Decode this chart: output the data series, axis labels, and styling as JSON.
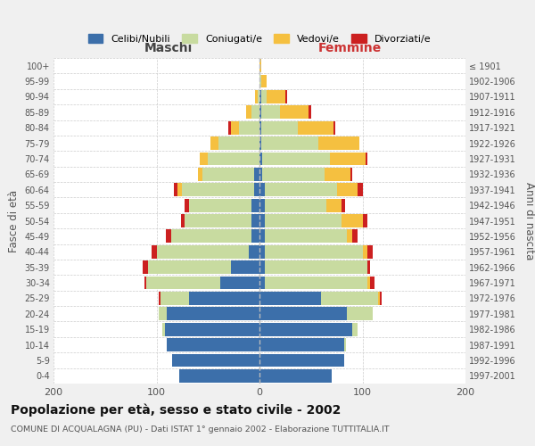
{
  "age_groups": [
    "0-4",
    "5-9",
    "10-14",
    "15-19",
    "20-24",
    "25-29",
    "30-34",
    "35-39",
    "40-44",
    "45-49",
    "50-54",
    "55-59",
    "60-64",
    "65-69",
    "70-74",
    "75-79",
    "80-84",
    "85-89",
    "90-94",
    "95-99",
    "100+"
  ],
  "birth_years": [
    "1997-2001",
    "1992-1996",
    "1987-1991",
    "1982-1986",
    "1977-1981",
    "1972-1976",
    "1967-1971",
    "1962-1966",
    "1957-1961",
    "1952-1956",
    "1947-1951",
    "1942-1946",
    "1937-1941",
    "1932-1936",
    "1927-1931",
    "1922-1926",
    "1917-1921",
    "1912-1916",
    "1907-1911",
    "1902-1906",
    "≤ 1901"
  ],
  "male": {
    "celibe": [
      78,
      85,
      90,
      92,
      90,
      68,
      38,
      28,
      10,
      8,
      8,
      8,
      5,
      5,
      0,
      0,
      0,
      0,
      0,
      0,
      0
    ],
    "coniugato": [
      0,
      0,
      0,
      2,
      8,
      28,
      72,
      80,
      90,
      78,
      65,
      60,
      70,
      50,
      50,
      40,
      20,
      8,
      2,
      0,
      0
    ],
    "vedovo": [
      0,
      0,
      0,
      0,
      0,
      0,
      0,
      0,
      0,
      0,
      0,
      0,
      5,
      5,
      8,
      8,
      8,
      5,
      2,
      0,
      0
    ],
    "divorziato": [
      0,
      0,
      0,
      0,
      0,
      2,
      2,
      5,
      5,
      5,
      3,
      5,
      3,
      0,
      0,
      0,
      2,
      0,
      0,
      0,
      0
    ]
  },
  "female": {
    "nubile": [
      70,
      82,
      82,
      90,
      85,
      60,
      5,
      5,
      5,
      5,
      5,
      5,
      5,
      3,
      3,
      2,
      2,
      2,
      2,
      0,
      0
    ],
    "coniugata": [
      0,
      0,
      2,
      5,
      25,
      55,
      100,
      100,
      95,
      80,
      75,
      60,
      70,
      60,
      65,
      55,
      35,
      18,
      5,
      2,
      0
    ],
    "vedova": [
      0,
      0,
      0,
      0,
      0,
      2,
      2,
      0,
      5,
      5,
      20,
      15,
      20,
      25,
      35,
      40,
      35,
      28,
      18,
      5,
      2
    ],
    "divorziata": [
      0,
      0,
      0,
      0,
      0,
      2,
      5,
      2,
      5,
      5,
      5,
      3,
      5,
      2,
      2,
      0,
      2,
      2,
      2,
      0,
      0
    ]
  },
  "colors": {
    "celibe": "#3c6faa",
    "coniugato": "#c8dba0",
    "vedovo": "#f5c040",
    "divorziato": "#cc2020"
  },
  "legend_labels": [
    "Celibi/Nubili",
    "Coniugati/e",
    "Vedovi/e",
    "Divorziati/e"
  ],
  "title": "Popolazione per età, sesso e stato civile - 2002",
  "subtitle": "COMUNE DI ACQUALAGNA (PU) - Dati ISTAT 1° gennaio 2002 - Elaborazione TUTTITALIA.IT",
  "xlabel_left": "Maschi",
  "xlabel_right": "Femmine",
  "ylabel_left": "Fasce di età",
  "ylabel_right": "Anni di nascita",
  "xlim": 200,
  "bg_color": "#f0f0f0",
  "plot_bg": "#ffffff"
}
